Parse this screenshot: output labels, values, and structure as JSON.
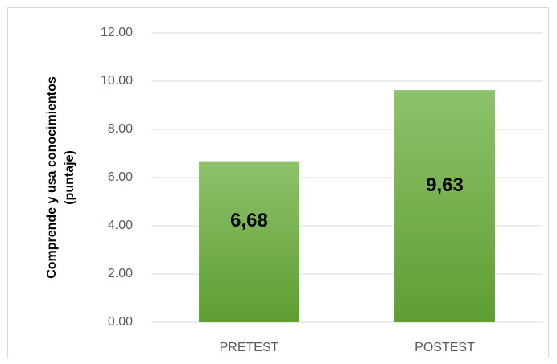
{
  "chart_data": {
    "type": "bar",
    "y_label": [
      "Comprende y usa conocimientos",
      "(puntaje)"
    ],
    "categories": [
      "PRETEST",
      "POSTEST"
    ],
    "values": [
      6.68,
      9.63
    ],
    "value_labels": [
      "6,68",
      "9,63"
    ],
    "color": "#70ad47",
    "ylim": [
      0,
      12
    ],
    "yticks": [
      {
        "value": 0,
        "label": "0.00"
      },
      {
        "value": 2,
        "label": "2.00"
      },
      {
        "value": 4,
        "label": "4.00"
      },
      {
        "value": 6,
        "label": "6.00"
      },
      {
        "value": 8,
        "label": "8.00"
      },
      {
        "value": 10,
        "label": "10.00"
      },
      {
        "value": 12,
        "label": "12.00"
      }
    ],
    "grid": true
  }
}
